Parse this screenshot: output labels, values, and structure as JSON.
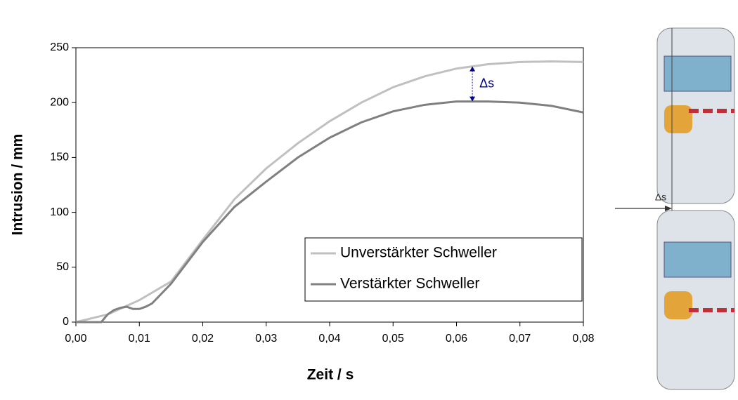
{
  "chart_data": {
    "type": "line",
    "xlabel": "Zeit / s",
    "ylabel": "Intrusion / mm",
    "annotation": "Δs",
    "series": [
      {
        "name": "Unverstärkter Schweller",
        "color": "#c0c0c0",
        "x": [
          0,
          0.005,
          0.01,
          0.015,
          0.02,
          0.025,
          0.03,
          0.035,
          0.04,
          0.045,
          0.05,
          0.055,
          0.06,
          0.065,
          0.07,
          0.075,
          0.08
        ],
        "values": [
          0,
          7,
          20,
          37,
          75,
          112,
          140,
          163,
          183,
          200,
          214,
          224,
          231,
          235,
          237,
          237.5,
          237
        ]
      },
      {
        "name": "Verstärkter Schweller",
        "color": "#808080",
        "x": [
          0,
          0.004,
          0.005,
          0.006,
          0.007,
          0.008,
          0.009,
          0.01,
          0.011,
          0.012,
          0.015,
          0.02,
          0.025,
          0.03,
          0.035,
          0.04,
          0.045,
          0.05,
          0.055,
          0.06,
          0.065,
          0.07,
          0.075,
          0.08
        ],
        "values": [
          0,
          0,
          7,
          11,
          13,
          14,
          12,
          12,
          14,
          17,
          35,
          73,
          105,
          128,
          150,
          168,
          182,
          192,
          198,
          201,
          201,
          200,
          197,
          191
        ]
      }
    ],
    "xlim": [
      0,
      0.08
    ],
    "xticks": [
      {
        "value": 0,
        "label": "0,00"
      },
      {
        "value": 0.01,
        "label": "0,01"
      },
      {
        "value": 0.02,
        "label": "0,02"
      },
      {
        "value": 0.03,
        "label": "0,03"
      },
      {
        "value": 0.04,
        "label": "0,04"
      },
      {
        "value": 0.05,
        "label": "0,05"
      },
      {
        "value": 0.06,
        "label": "0,06"
      },
      {
        "value": 0.07,
        "label": "0,07"
      },
      {
        "value": 0.08,
        "label": "0,08"
      }
    ],
    "ylim": [
      0,
      250
    ],
    "yticks": [
      0,
      50,
      100,
      150,
      200,
      250
    ],
    "annotation_x": 0.0625,
    "annotation_range": [
      233,
      201
    ],
    "legend": "lower-right"
  }
}
